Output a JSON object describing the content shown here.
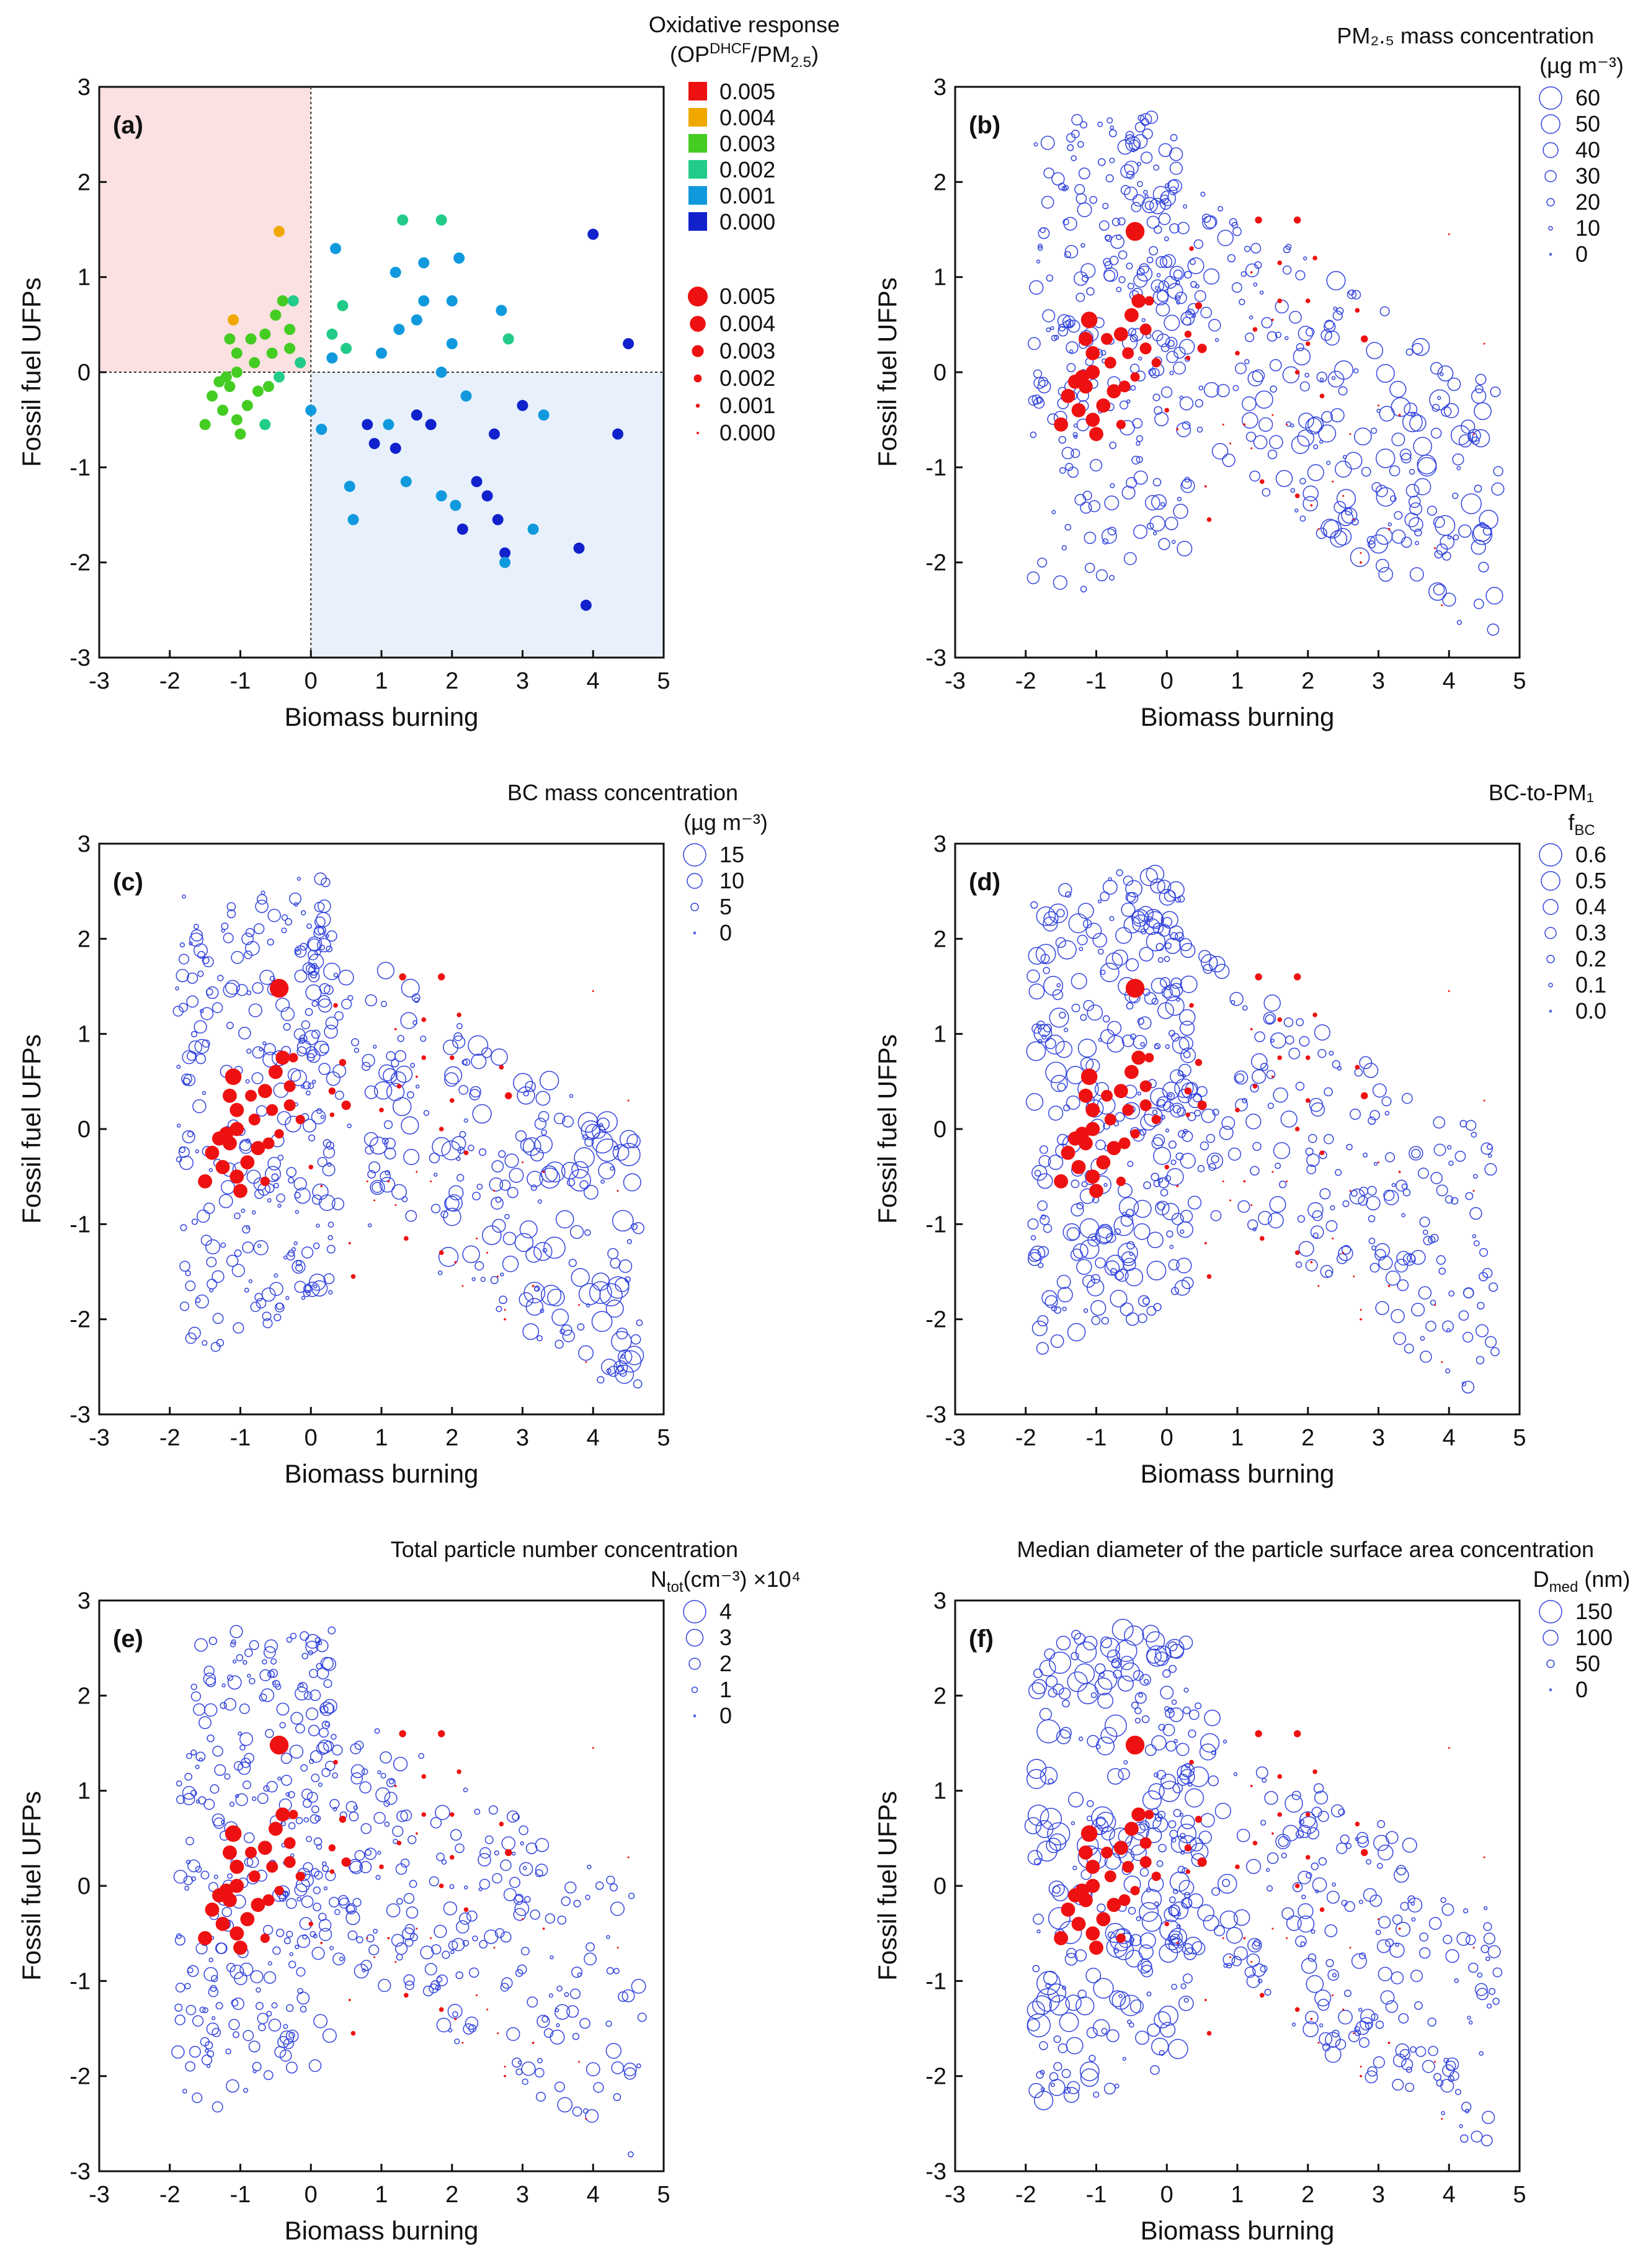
{
  "figure": {
    "size_legend_title_b": "PM₂.₅ mass concentration",
    "size_legend_title_c": "BC mass concentration",
    "size_legend_title_d": "BC-to-PM₁",
    "size_legend_title_e": "Total particle number concentration",
    "size_legend_title_f": "Median diameter of the particle surface area concentration"
  },
  "chart_data": [
    {
      "panel": "(a)",
      "type": "scatter",
      "xlabel": "Biomass burning",
      "ylabel": "Fossil fuel UFPs",
      "xlim": [
        -3,
        5
      ],
      "ylim": [
        -3,
        3
      ],
      "xticks": [
        "-3",
        "-2",
        "-1",
        "0",
        "1",
        "2",
        "3",
        "4",
        "5"
      ],
      "yticks": [
        "-3",
        "-2",
        "-1",
        "0",
        "1",
        "2",
        "3"
      ],
      "legend_title": "Oxidative response",
      "legend_title_2": "(OP",
      "legend_title_sup": "DHCF",
      "legend_title_3": "/PM",
      "legend_title_sub": "2.5",
      "legend_title_4": ")",
      "color_legend": [
        {
          "label": "0.005",
          "color": "#ee1111"
        },
        {
          "label": "0.004",
          "color": "#f0a800"
        },
        {
          "label": "0.003",
          "color": "#44cc22"
        },
        {
          "label": "0.002",
          "color": "#22cc88"
        },
        {
          "label": "0.001",
          "color": "#1199dd"
        },
        {
          "label": "0.000",
          "color": "#1122cc"
        }
      ],
      "size_legend": [
        {
          "label": "0.005",
          "value": 0.005
        },
        {
          "label": "0.004",
          "value": 0.004
        },
        {
          "label": "0.003",
          "value": 0.003
        },
        {
          "label": "0.002",
          "value": 0.002
        },
        {
          "label": "0.001",
          "value": 0.001
        },
        {
          "label": "0.000",
          "value": 0.0
        }
      ],
      "shaded_quadrants": [
        {
          "x": [
            -3,
            0
          ],
          "y": [
            0,
            3
          ],
          "color": "#fbe1e1"
        },
        {
          "x": [
            0,
            5
          ],
          "y": [
            -3,
            0
          ],
          "color": "#e8f1fb"
        }
      ],
      "points": [
        [
          -0.45,
          1.48,
          0.004
        ],
        [
          -1.1,
          0.55,
          0.0035
        ],
        [
          -1.15,
          0.35,
          0.003
        ],
        [
          -1.05,
          0.2,
          0.003
        ],
        [
          -0.85,
          0.35,
          0.0025
        ],
        [
          -0.65,
          0.4,
          0.003
        ],
        [
          -0.5,
          0.6,
          0.003
        ],
        [
          -0.4,
          0.75,
          0.003
        ],
        [
          -0.25,
          0.75,
          0.002
        ],
        [
          -0.3,
          0.45,
          0.0025
        ],
        [
          -0.15,
          0.1,
          0.002
        ],
        [
          -1.2,
          -0.05,
          0.003
        ],
        [
          -1.3,
          -0.1,
          0.003
        ],
        [
          -1.4,
          -0.25,
          0.003
        ],
        [
          -1.25,
          -0.4,
          0.003
        ],
        [
          -1.5,
          -0.55,
          0.003
        ],
        [
          -1.05,
          -0.5,
          0.003
        ],
        [
          -0.9,
          -0.35,
          0.003
        ],
        [
          -0.75,
          -0.2,
          0.003
        ],
        [
          -0.6,
          -0.15,
          0.0025
        ],
        [
          -0.45,
          -0.05,
          0.002
        ],
        [
          -0.3,
          0.25,
          0.0025
        ],
        [
          -1.0,
          -0.65,
          0.003
        ],
        [
          -0.65,
          -0.55,
          0.002
        ],
        [
          -0.8,
          0.1,
          0.0025
        ],
        [
          -1.15,
          -0.15,
          0.003
        ],
        [
          -1.05,
          0.0,
          0.003
        ],
        [
          -0.55,
          0.2,
          0.0025
        ],
        [
          0.35,
          1.3,
          0.001
        ],
        [
          0.45,
          0.7,
          0.0015
        ],
        [
          0.3,
          0.4,
          0.0015
        ],
        [
          0.3,
          0.15,
          0.001
        ],
        [
          0.5,
          0.25,
          0.002
        ],
        [
          0.0,
          -0.4,
          0.001
        ],
        [
          0.15,
          -0.6,
          0.0005
        ],
        [
          0.55,
          -1.2,
          0.0005
        ],
        [
          0.6,
          -1.55,
          0.001
        ],
        [
          0.8,
          -0.55,
          0.0003
        ],
        [
          0.9,
          -0.75,
          0.0003
        ],
        [
          1.0,
          0.2,
          0.001
        ],
        [
          1.2,
          1.05,
          0.0005
        ],
        [
          1.3,
          1.6,
          0.0015
        ],
        [
          1.25,
          0.45,
          0.001
        ],
        [
          1.5,
          0.55,
          0.0005
        ],
        [
          1.6,
          0.75,
          0.001
        ],
        [
          1.85,
          1.6,
          0.0015
        ],
        [
          2.0,
          0.75,
          0.001
        ],
        [
          2.0,
          0.3,
          0.001
        ],
        [
          1.85,
          0.0,
          0.001
        ],
        [
          1.1,
          -0.55,
          0.0005
        ],
        [
          1.2,
          -0.8,
          0.0003
        ],
        [
          1.35,
          -1.15,
          0.001
        ],
        [
          1.5,
          -0.45,
          0.0003
        ],
        [
          1.7,
          -0.55,
          0.0002
        ],
        [
          1.85,
          -1.3,
          0.001
        ],
        [
          2.05,
          -1.4,
          0.0005
        ],
        [
          2.2,
          -0.25,
          0.001
        ],
        [
          2.15,
          -1.65,
          0.0003
        ],
        [
          2.35,
          -1.15,
          0.0003
        ],
        [
          2.5,
          -1.3,
          0.0002
        ],
        [
          2.6,
          -0.65,
          0.0003
        ],
        [
          2.65,
          -1.55,
          0.0002
        ],
        [
          2.75,
          -1.9,
          0.0003
        ],
        [
          2.75,
          -2.0,
          0.0005
        ],
        [
          2.8,
          0.35,
          0.0015
        ],
        [
          2.7,
          0.65,
          0.001
        ],
        [
          3.0,
          -0.35,
          0.0003
        ],
        [
          3.15,
          -1.65,
          0.0005
        ],
        [
          3.3,
          -0.45,
          0.0005
        ],
        [
          3.8,
          -1.85,
          0.0003
        ],
        [
          3.9,
          -2.45,
          0.0002
        ],
        [
          4.0,
          1.45,
          0.0002
        ],
        [
          4.35,
          -0.65,
          0.0002
        ],
        [
          4.5,
          0.3,
          0.0001
        ],
        [
          2.1,
          1.2,
          0.001
        ],
        [
          1.6,
          1.15,
          0.001
        ]
      ]
    },
    {
      "panel": "(b)",
      "type": "scatter",
      "xlabel": "Biomass burning",
      "ylabel": "Fossil fuel UFPs",
      "xlim": [
        -3,
        5
      ],
      "ylim": [
        -3,
        3
      ],
      "xticks": [
        "-3",
        "-2",
        "-1",
        "0",
        "1",
        "2",
        "3",
        "4",
        "5"
      ],
      "yticks": [
        "-3",
        "-2",
        "-1",
        "0",
        "1",
        "2",
        "3"
      ],
      "legend_unit": "(µg m⁻³)",
      "size_legend": [
        {
          "label": "60",
          "value": 60
        },
        {
          "label": "50",
          "value": 50
        },
        {
          "label": "40",
          "value": 40
        },
        {
          "label": "30",
          "value": 30
        },
        {
          "label": "20",
          "value": 20
        },
        {
          "label": "10",
          "value": 10
        },
        {
          "label": "0",
          "value": 0
        }
      ],
      "size_max": 60,
      "seed": 11,
      "bias": 1.0
    },
    {
      "panel": "(c)",
      "type": "scatter",
      "xlabel": "Biomass burning",
      "ylabel": "Fossil fuel UFPs",
      "xlim": [
        -3,
        5
      ],
      "ylim": [
        -3,
        3
      ],
      "xticks": [
        "-3",
        "-2",
        "-1",
        "0",
        "1",
        "2",
        "3",
        "4",
        "5"
      ],
      "yticks": [
        "-3",
        "-2",
        "-1",
        "0",
        "1",
        "2",
        "3"
      ],
      "legend_unit": "(µg m⁻³)",
      "size_legend": [
        {
          "label": "15",
          "value": 15
        },
        {
          "label": "10",
          "value": 10
        },
        {
          "label": "5",
          "value": 5
        },
        {
          "label": "0",
          "value": 0
        }
      ],
      "size_max": 15,
      "seed": 23,
      "bias": 1.3
    },
    {
      "panel": "(d)",
      "type": "scatter",
      "xlabel": "Biomass burning",
      "ylabel": "Fossil fuel UFPs",
      "xlim": [
        -3,
        5
      ],
      "ylim": [
        -3,
        3
      ],
      "xticks": [
        "-3",
        "-2",
        "-1",
        "0",
        "1",
        "2",
        "3",
        "4",
        "5"
      ],
      "yticks": [
        "-3",
        "-2",
        "-1",
        "0",
        "1",
        "2",
        "3"
      ],
      "legend_unit": "f",
      "legend_unit_sub": "BC",
      "size_legend": [
        {
          "label": "0.6",
          "value": 0.6
        },
        {
          "label": "0.5",
          "value": 0.5
        },
        {
          "label": "0.4",
          "value": 0.4
        },
        {
          "label": "0.3",
          "value": 0.3
        },
        {
          "label": "0.2",
          "value": 0.2
        },
        {
          "label": "0.1",
          "value": 0.1
        },
        {
          "label": "0.0",
          "value": 0.0
        }
      ],
      "size_max": 0.6,
      "seed": 37,
      "bias": -0.6
    },
    {
      "panel": "(e)",
      "type": "scatter",
      "xlabel": "Biomass burning",
      "ylabel": "Fossil fuel UFPs",
      "xlim": [
        -3,
        5
      ],
      "ylim": [
        -3,
        3
      ],
      "xticks": [
        "-3",
        "-2",
        "-1",
        "0",
        "1",
        "2",
        "3",
        "4",
        "5"
      ],
      "yticks": [
        "-3",
        "-2",
        "-1",
        "0",
        "1",
        "2",
        "3"
      ],
      "legend_unit": "N",
      "legend_unit_sub": "tot",
      "legend_unit_rest": "(cm⁻³) ×10⁴",
      "size_legend": [
        {
          "label": "4",
          "value": 4
        },
        {
          "label": "3",
          "value": 3
        },
        {
          "label": "2",
          "value": 2
        },
        {
          "label": "1",
          "value": 1
        },
        {
          "label": "0",
          "value": 0
        }
      ],
      "size_max": 4,
      "seed": 53,
      "bias": 0.2
    },
    {
      "panel": "(f)",
      "type": "scatter",
      "xlabel": "Biomass burning",
      "ylabel": "Fossil fuel UFPs",
      "xlim": [
        -3,
        5
      ],
      "ylim": [
        -3,
        3
      ],
      "xticks": [
        "-3",
        "-2",
        "-1",
        "0",
        "1",
        "2",
        "3",
        "4",
        "5"
      ],
      "yticks": [
        "-3",
        "-2",
        "-1",
        "0",
        "1",
        "2",
        "3"
      ],
      "legend_unit": "D",
      "legend_unit_sub": "med",
      "legend_unit_rest": " (nm)",
      "size_legend": [
        {
          "label": "150",
          "value": 150
        },
        {
          "label": "100",
          "value": 100
        },
        {
          "label": "50",
          "value": 50
        },
        {
          "label": "0",
          "value": 0
        }
      ],
      "size_max": 150,
      "seed": 71,
      "bias": -0.8
    }
  ]
}
